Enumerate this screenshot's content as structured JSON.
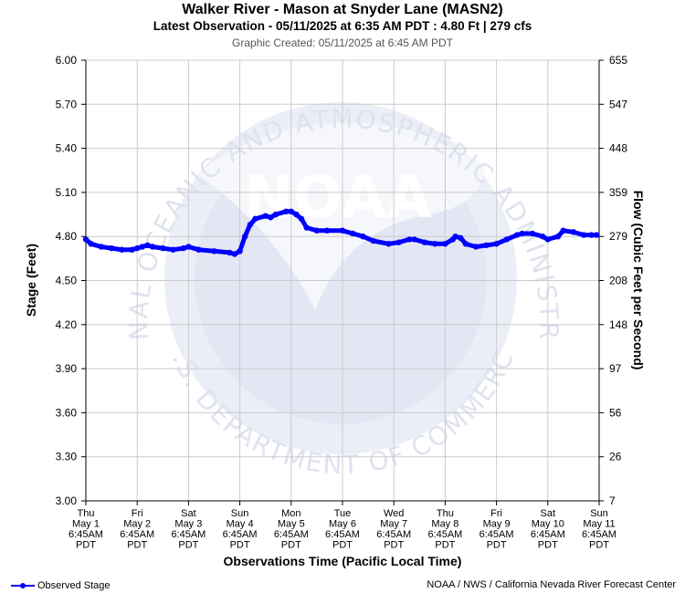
{
  "header": {
    "title": "Walker River - Mason at Snyder Lane (MASN2)",
    "subtitle": "Latest Observation - 05/11/2025 at 6:35 AM PDT : 4.80 Ft | 279 cfs",
    "created": "Graphic Created: 05/11/2025 at 6:45 AM PDT"
  },
  "footer": {
    "legend_label": "Observed Stage",
    "credit": "NOAA / NWS / California Nevada River Forecast Center"
  },
  "watermark": {
    "logo_text": "NOAA",
    "ring_text_top": "NATIONAL OCEANIC AND ATMOSPHERIC ADMINISTRATION",
    "ring_text_bottom": "U.S. DEPARTMENT OF COMMERCE"
  },
  "colors": {
    "series": "#0000ff",
    "grid": "#cccccc",
    "watermark": "#e6e8f5"
  },
  "chart_data": {
    "type": "line",
    "xlabel": "Observations Time (Pacific Local Time)",
    "ylabel": "Stage (Feet)",
    "y2label": "Flow (Cubic Feet per Second)",
    "ylim": [
      3.0,
      6.0
    ],
    "yticks": [
      "3.00",
      "3.30",
      "3.60",
      "3.90",
      "4.20",
      "4.50",
      "4.80",
      "5.10",
      "5.40",
      "5.70",
      "6.00"
    ],
    "y2ticks": [
      "7",
      "26",
      "56",
      "97",
      "148",
      "208",
      "279",
      "359",
      "448",
      "547",
      "655"
    ],
    "xlim": [
      0,
      10
    ],
    "xticks": [
      [
        "Thu",
        "May 1",
        "6:45AM",
        "PDT"
      ],
      [
        "Fri",
        "May 2",
        "6:45AM",
        "PDT"
      ],
      [
        "Sat",
        "May 3",
        "6:45AM",
        "PDT"
      ],
      [
        "Sun",
        "May 4",
        "6:45AM",
        "PDT"
      ],
      [
        "Mon",
        "May 5",
        "6:45AM",
        "PDT"
      ],
      [
        "Tue",
        "May 6",
        "6:45AM",
        "PDT"
      ],
      [
        "Wed",
        "May 7",
        "6:45AM",
        "PDT"
      ],
      [
        "Thu",
        "May 8",
        "6:45AM",
        "PDT"
      ],
      [
        "Fri",
        "May 9",
        "6:45AM",
        "PDT"
      ],
      [
        "Sat",
        "May 10",
        "6:45AM",
        "PDT"
      ],
      [
        "Sun",
        "May 11",
        "6:45AM",
        "PDT"
      ]
    ],
    "grid": true,
    "legend": "bottom-left",
    "series": [
      {
        "name": "Observed Stage",
        "x": [
          0,
          0.1,
          0.3,
          0.5,
          0.7,
          0.9,
          1.0,
          1.1,
          1.2,
          1.3,
          1.5,
          1.7,
          1.9,
          2.0,
          2.2,
          2.5,
          2.8,
          2.9,
          3.0,
          3.1,
          3.2,
          3.3,
          3.5,
          3.6,
          3.7,
          3.9,
          4.0,
          4.1,
          4.2,
          4.3,
          4.5,
          4.7,
          5.0,
          5.2,
          5.4,
          5.6,
          5.9,
          6.1,
          6.3,
          6.4,
          6.6,
          6.8,
          7.0,
          7.15,
          7.2,
          7.3,
          7.4,
          7.6,
          7.8,
          8.0,
          8.2,
          8.4,
          8.5,
          8.7,
          8.9,
          9.0,
          9.2,
          9.3,
          9.5,
          9.7,
          9.85,
          9.95
        ],
        "values": [
          4.78,
          4.75,
          4.73,
          4.72,
          4.71,
          4.71,
          4.72,
          4.73,
          4.74,
          4.73,
          4.72,
          4.71,
          4.72,
          4.73,
          4.71,
          4.7,
          4.69,
          4.68,
          4.7,
          4.8,
          4.88,
          4.92,
          4.94,
          4.93,
          4.95,
          4.97,
          4.97,
          4.95,
          4.92,
          4.86,
          4.84,
          4.84,
          4.84,
          4.82,
          4.8,
          4.77,
          4.75,
          4.76,
          4.78,
          4.78,
          4.76,
          4.75,
          4.75,
          4.78,
          4.8,
          4.79,
          4.75,
          4.73,
          4.74,
          4.75,
          4.78,
          4.81,
          4.82,
          4.82,
          4.8,
          4.78,
          4.8,
          4.84,
          4.83,
          4.81,
          4.81,
          4.81
        ]
      }
    ]
  }
}
